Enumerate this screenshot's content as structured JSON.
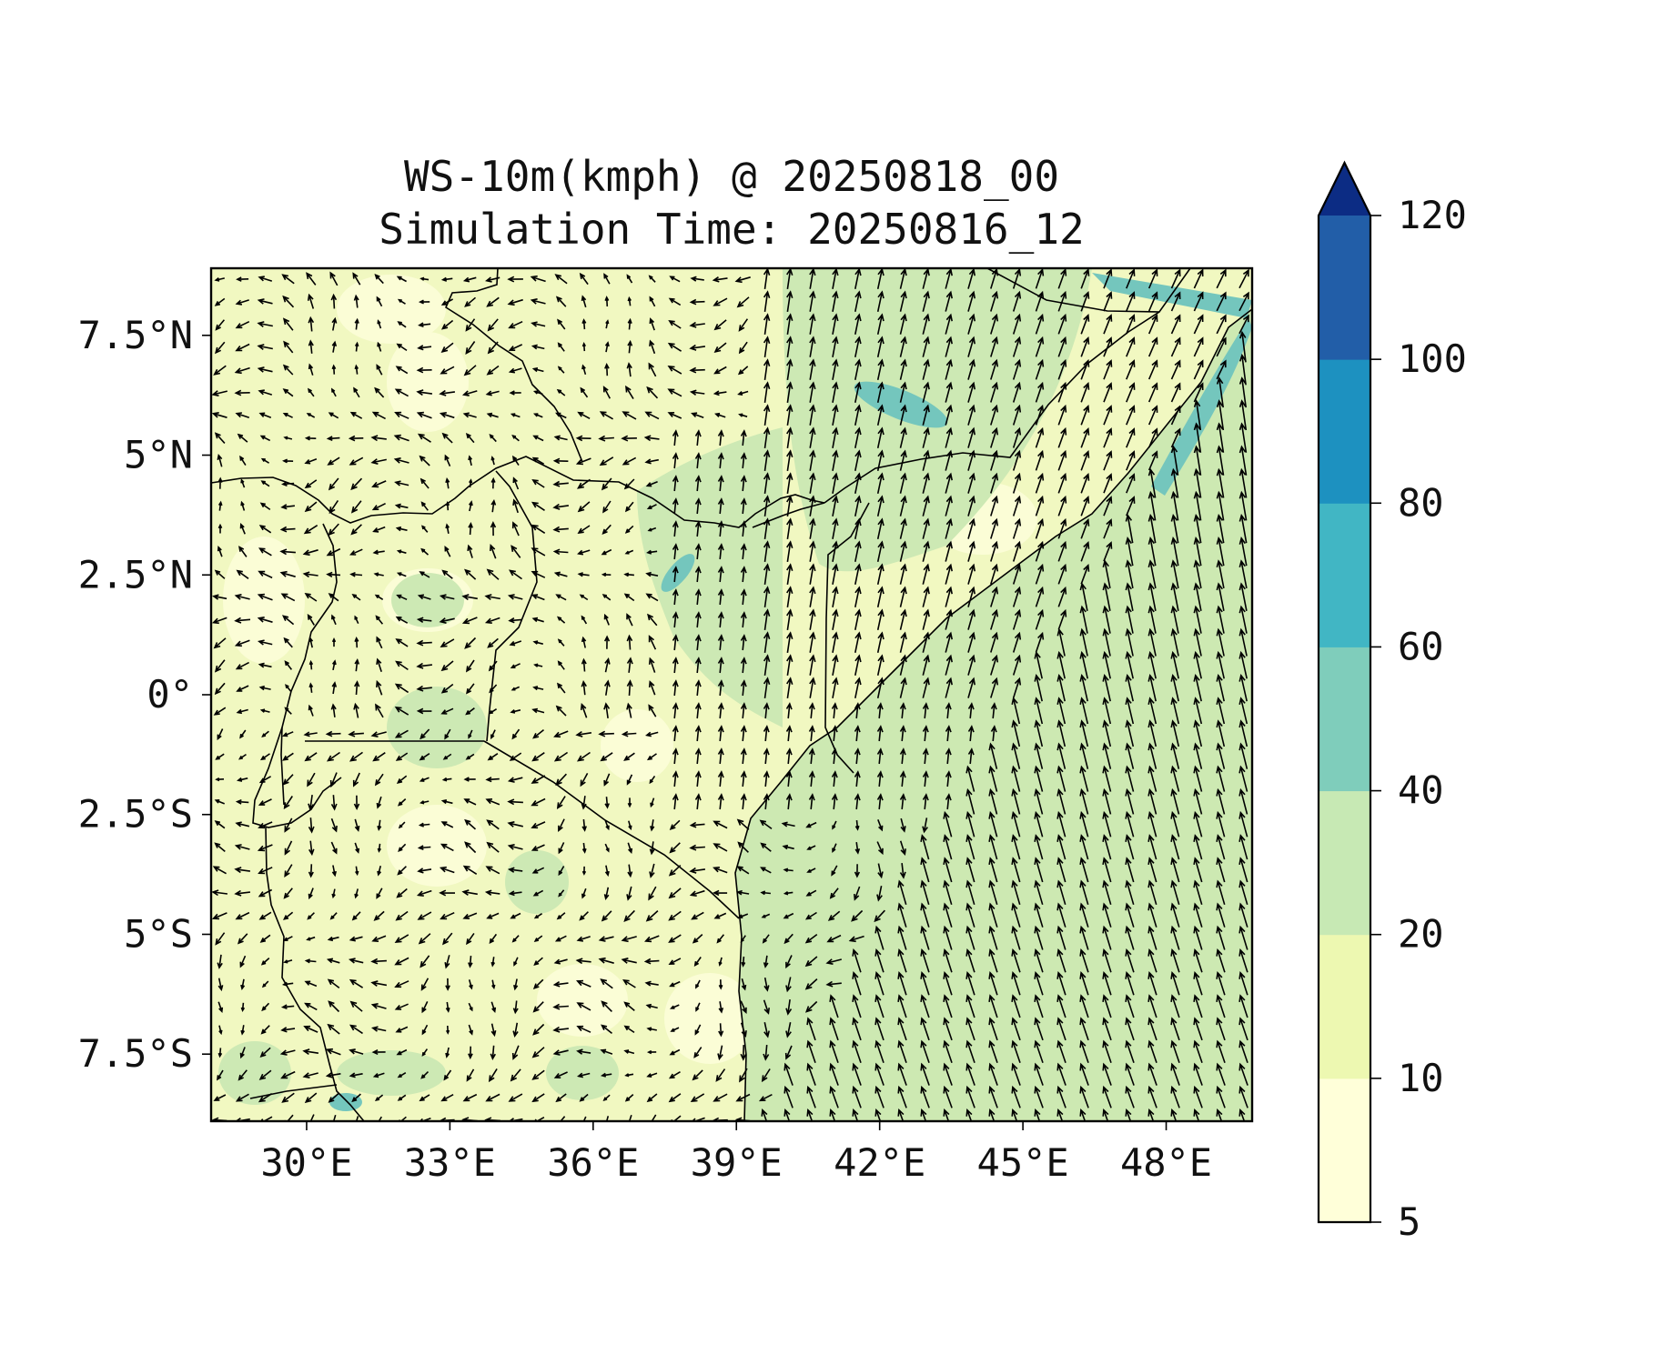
{
  "title": {
    "line1": "WS-10m(kmph) @ 20250818_00",
    "line2": "Simulation Time: 20250816_12"
  },
  "map": {
    "lon_range": [
      28,
      49.8
    ],
    "lat_range": [
      -8.9,
      8.9
    ],
    "x_ticks": [
      {
        "value": 30,
        "label": "30°E"
      },
      {
        "value": 33,
        "label": "33°E"
      },
      {
        "value": 36,
        "label": "36°E"
      },
      {
        "value": 39,
        "label": "39°E"
      },
      {
        "value": 42,
        "label": "42°E"
      },
      {
        "value": 45,
        "label": "45°E"
      },
      {
        "value": 48,
        "label": "48°E"
      }
    ],
    "y_ticks": [
      {
        "value": 7.5,
        "label": "7.5°N"
      },
      {
        "value": 5,
        "label": "5°N"
      },
      {
        "value": 2.5,
        "label": "2.5°N"
      },
      {
        "value": 0,
        "label": "0°"
      },
      {
        "value": -2.5,
        "label": "2.5°S"
      },
      {
        "value": -5,
        "label": "5°S"
      },
      {
        "value": -7.5,
        "label": "7.5°S"
      }
    ],
    "colors": {
      "land_base": "#f1f8c1",
      "land_light": "#fbfdd6",
      "land_mid": "#cde9b4",
      "ocean": "#cde9b2",
      "strong": "#74c6bd",
      "border": "#000000",
      "arrow": "#000000"
    }
  },
  "colorbar": {
    "bounds": [
      5,
      10,
      20,
      40,
      60,
      80,
      100,
      120
    ],
    "tick_labels": [
      "5",
      "10",
      "20",
      "40",
      "60",
      "80",
      "100",
      "120"
    ],
    "colors": [
      "#ffffd9",
      "#edf8b1",
      "#c7e9b4",
      "#7fcdbb",
      "#41b6c4",
      "#1d91c0",
      "#225ea8"
    ],
    "extend_color": "#0c2c84",
    "extend": "max"
  }
}
